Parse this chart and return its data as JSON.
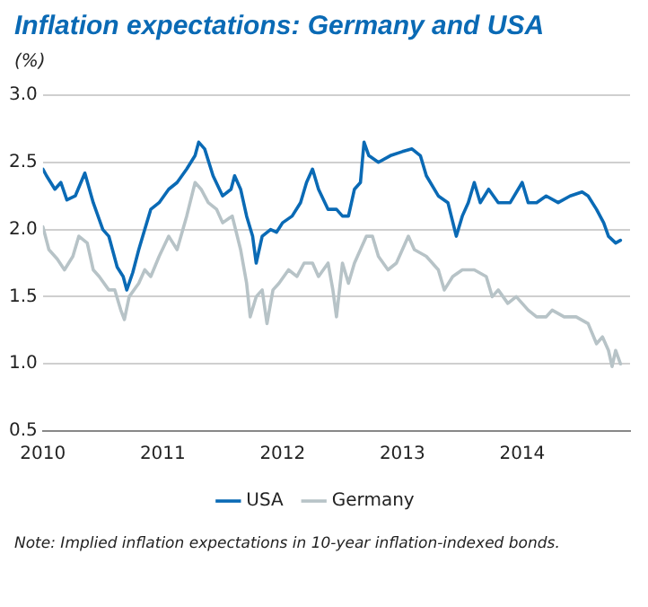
{
  "chart_data": {
    "type": "line",
    "title": "Inflation expectations: Germany and USA",
    "ylabel": "(%)",
    "annotations": [
      "Note: Implied inflation expectations in 10-year inflation-indexed bonds."
    ],
    "xlim": [
      2010,
      2014.9
    ],
    "xticks": [
      2010,
      2011,
      2012,
      2013,
      2014
    ],
    "ylim": [
      0.5,
      3.0
    ],
    "yticks": [
      {
        "value": 0.5,
        "label": "0.5"
      },
      {
        "value": 1.0,
        "label": "1.0"
      },
      {
        "value": 1.5,
        "label": "1.5"
      },
      {
        "value": 2.0,
        "label": "2.0"
      },
      {
        "value": 2.5,
        "label": "2.5"
      },
      {
        "value": 3.0,
        "label": "3.0"
      }
    ],
    "grid": "y",
    "legend": "bottom",
    "marker": "none",
    "line_style": "solid",
    "series": [
      {
        "name": "USA",
        "color": "#0a6ab5",
        "x": [
          2010.0,
          2010.03,
          2010.1,
          2010.15,
          2010.2,
          2010.27,
          2010.35,
          2010.42,
          2010.5,
          2010.55,
          2010.62,
          2010.67,
          2010.7,
          2010.75,
          2010.8,
          2010.85,
          2010.9,
          2010.97,
          2011.05,
          2011.12,
          2011.2,
          2011.27,
          2011.3,
          2011.35,
          2011.42,
          2011.5,
          2011.57,
          2011.6,
          2011.65,
          2011.7,
          2011.75,
          2011.78,
          2011.83,
          2011.9,
          2011.95,
          2012.0,
          2012.08,
          2012.15,
          2012.2,
          2012.25,
          2012.3,
          2012.38,
          2012.45,
          2012.5,
          2012.55,
          2012.6,
          2012.65,
          2012.68,
          2012.72,
          2012.8,
          2012.9,
          2013.0,
          2013.08,
          2013.15,
          2013.2,
          2013.3,
          2013.38,
          2013.45,
          2013.5,
          2013.55,
          2013.6,
          2013.65,
          2013.72,
          2013.8,
          2013.9,
          2014.0,
          2014.05,
          2014.12,
          2014.2,
          2014.3,
          2014.4,
          2014.5,
          2014.55,
          2014.62,
          2014.68,
          2014.72,
          2014.78,
          2014.82
        ],
        "values": [
          2.45,
          2.4,
          2.3,
          2.35,
          2.22,
          2.25,
          2.42,
          2.2,
          2.0,
          1.95,
          1.72,
          1.65,
          1.55,
          1.68,
          1.85,
          2.0,
          2.15,
          2.2,
          2.3,
          2.35,
          2.45,
          2.55,
          2.65,
          2.6,
          2.4,
          2.25,
          2.3,
          2.4,
          2.3,
          2.1,
          1.95,
          1.75,
          1.95,
          2.0,
          1.98,
          2.05,
          2.1,
          2.2,
          2.35,
          2.45,
          2.3,
          2.15,
          2.15,
          2.1,
          2.1,
          2.3,
          2.35,
          2.65,
          2.55,
          2.5,
          2.55,
          2.58,
          2.6,
          2.55,
          2.4,
          2.25,
          2.2,
          1.95,
          2.1,
          2.2,
          2.35,
          2.2,
          2.3,
          2.2,
          2.2,
          2.35,
          2.2,
          2.2,
          2.25,
          2.2,
          2.25,
          2.28,
          2.25,
          2.15,
          2.05,
          1.95,
          1.9,
          1.92
        ]
      },
      {
        "name": "Germany",
        "color": "#b7c3c7",
        "x": [
          2010.0,
          2010.05,
          2010.12,
          2010.18,
          2010.25,
          2010.3,
          2010.37,
          2010.42,
          2010.47,
          2010.55,
          2010.6,
          2010.65,
          2010.68,
          2010.72,
          2010.8,
          2010.85,
          2010.9,
          2010.97,
          2011.05,
          2011.12,
          2011.2,
          2011.27,
          2011.32,
          2011.38,
          2011.45,
          2011.5,
          2011.58,
          2011.65,
          2011.7,
          2011.73,
          2011.78,
          2011.83,
          2011.87,
          2011.92,
          2011.97,
          2012.05,
          2012.12,
          2012.18,
          2012.25,
          2012.3,
          2012.38,
          2012.42,
          2012.45,
          2012.5,
          2012.55,
          2012.6,
          2012.65,
          2012.7,
          2012.75,
          2012.8,
          2012.88,
          2012.95,
          2013.05,
          2013.1,
          2013.2,
          2013.3,
          2013.35,
          2013.42,
          2013.5,
          2013.6,
          2013.7,
          2013.75,
          2013.8,
          2013.88,
          2013.95,
          2014.05,
          2014.12,
          2014.2,
          2014.25,
          2014.35,
          2014.45,
          2014.55,
          2014.62,
          2014.67,
          2014.72,
          2014.75,
          2014.78,
          2014.82
        ],
        "values": [
          2.02,
          1.85,
          1.78,
          1.7,
          1.8,
          1.95,
          1.9,
          1.7,
          1.65,
          1.55,
          1.55,
          1.4,
          1.33,
          1.5,
          1.6,
          1.7,
          1.65,
          1.8,
          1.95,
          1.85,
          2.1,
          2.35,
          2.3,
          2.2,
          2.15,
          2.05,
          2.1,
          1.85,
          1.6,
          1.35,
          1.5,
          1.55,
          1.3,
          1.55,
          1.6,
          1.7,
          1.65,
          1.75,
          1.75,
          1.65,
          1.75,
          1.55,
          1.35,
          1.75,
          1.6,
          1.75,
          1.85,
          1.95,
          1.95,
          1.8,
          1.7,
          1.75,
          1.95,
          1.85,
          1.8,
          1.7,
          1.55,
          1.65,
          1.7,
          1.7,
          1.65,
          1.5,
          1.55,
          1.45,
          1.5,
          1.4,
          1.35,
          1.35,
          1.4,
          1.35,
          1.35,
          1.3,
          1.15,
          1.2,
          1.1,
          0.98,
          1.1,
          1.0
        ]
      }
    ]
  }
}
